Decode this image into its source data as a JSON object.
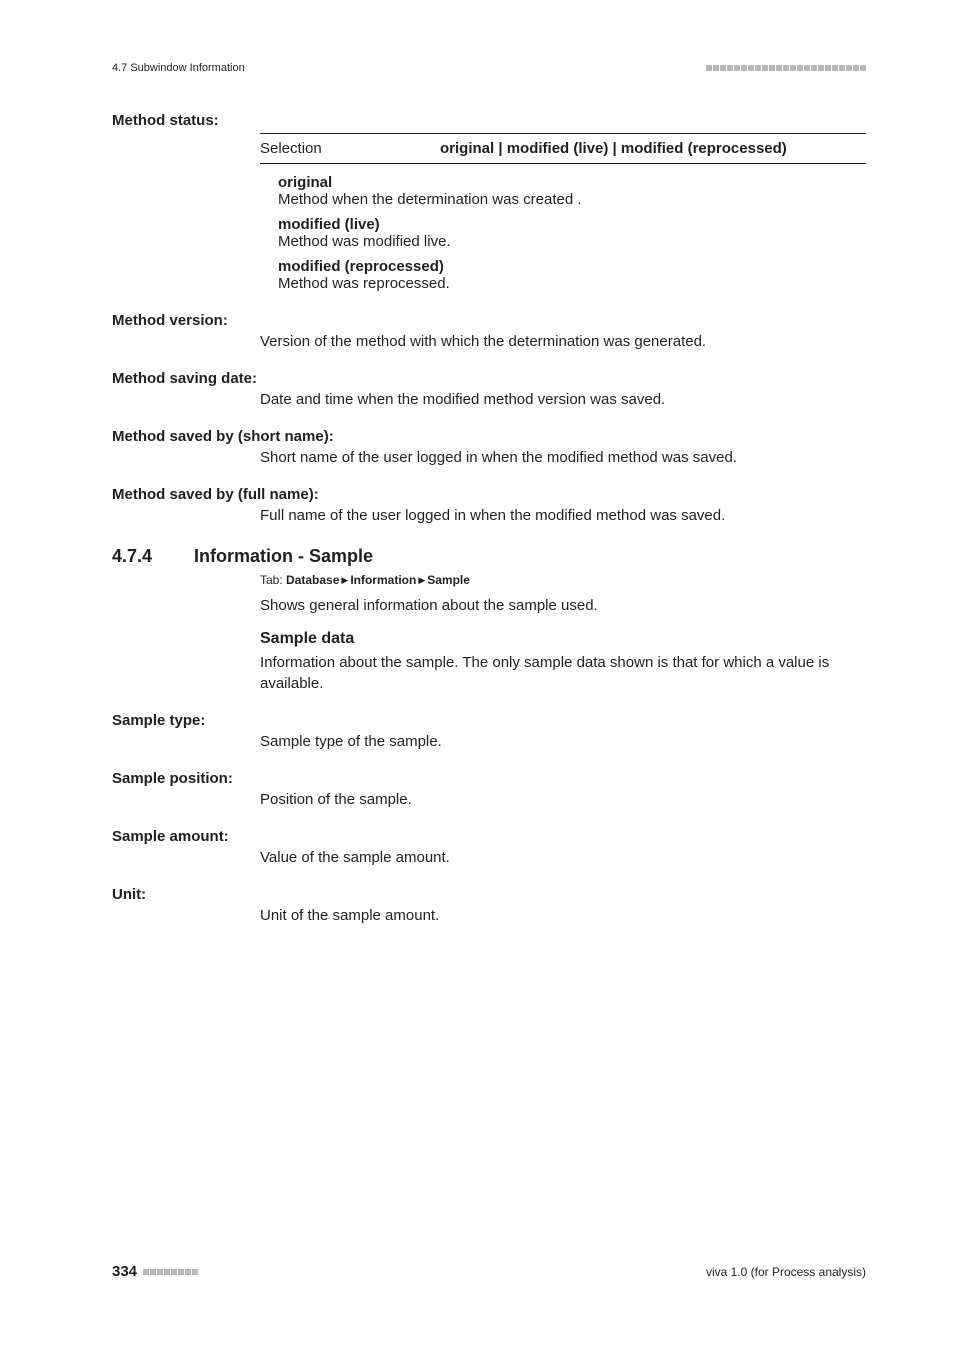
{
  "header": {
    "section_label": "4.7 Subwindow Information"
  },
  "defs": [
    {
      "term": "Method status:",
      "selection": {
        "label": "Selection",
        "value": "original | modified (live) | modified (reprocessed)"
      },
      "options": [
        {
          "name": "original",
          "desc": "Method when the determination was created ."
        },
        {
          "name": "modified (live)",
          "desc": "Method was modified live."
        },
        {
          "name": "modified (reprocessed)",
          "desc": "Method was reprocessed."
        }
      ]
    },
    {
      "term": "Method version:",
      "desc": "Version of the method with which the determination was generated."
    },
    {
      "term": "Method saving date:",
      "desc": "Date and time when the modified method version was saved."
    },
    {
      "term": "Method saved by (short name):",
      "desc": "Short name of the user logged in when the modified method was saved."
    },
    {
      "term": "Method saved by (full name):",
      "desc": "Full name of the user logged in when the modified method was saved."
    }
  ],
  "section": {
    "number": "4.7.4",
    "title": "Information - Sample",
    "tab_prefix": "Tab: ",
    "tab_path": [
      "Database",
      "Information",
      "Sample"
    ],
    "intro": "Shows general information about the sample used.",
    "subhead": "Sample data",
    "subdesc": "Information about the sample. The only sample data shown is that for which a value is available."
  },
  "sample_defs": [
    {
      "term": "Sample type:",
      "desc": "Sample type of the sample."
    },
    {
      "term": "Sample position:",
      "desc": "Position of the sample."
    },
    {
      "term": "Sample amount:",
      "desc": "Value of the sample amount."
    },
    {
      "term": "Unit:",
      "desc": "Unit of the sample amount."
    }
  ],
  "footer": {
    "page": "334",
    "right": "viva 1.0 (for Process analysis)"
  },
  "colors": {
    "text": "#231f20",
    "square": "#b7b7b7",
    "bg": "#ffffff"
  }
}
